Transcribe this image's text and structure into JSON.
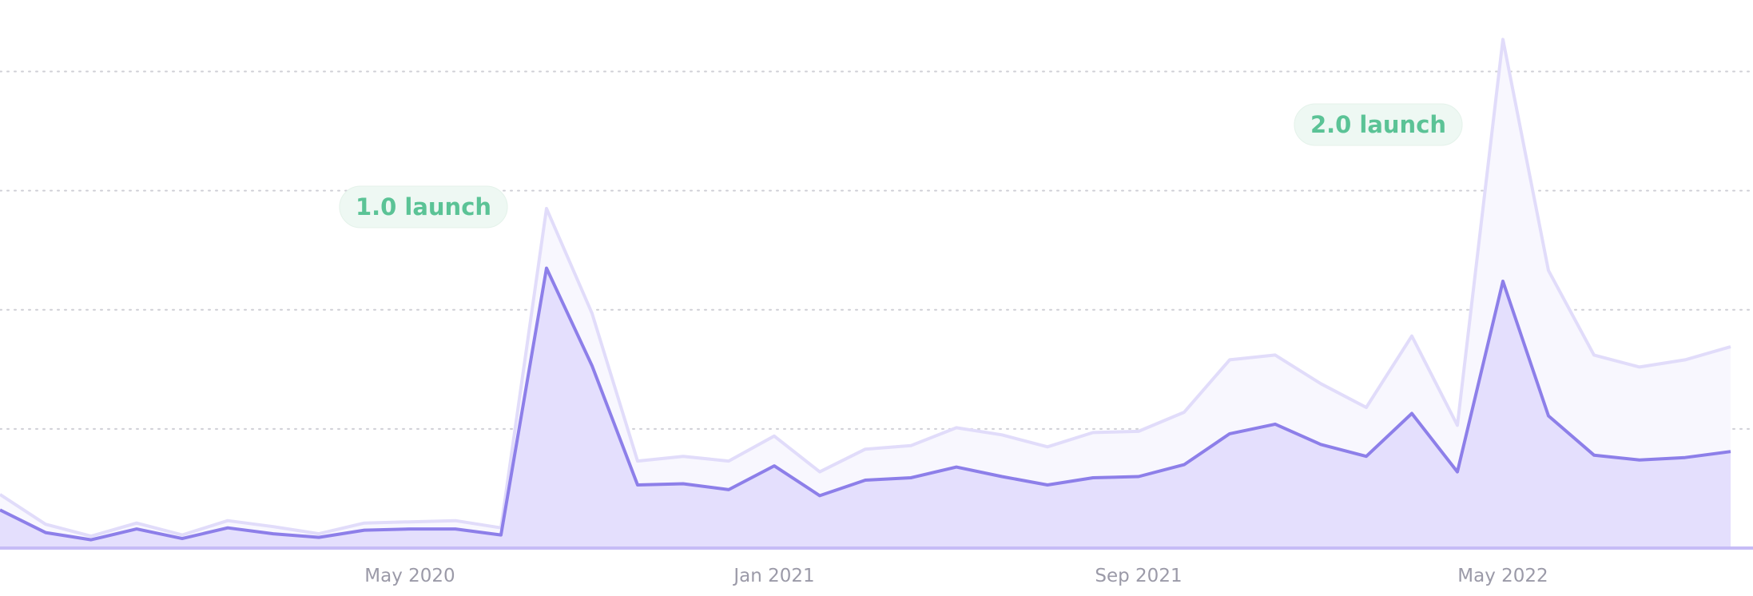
{
  "chart_data": {
    "type": "area",
    "x": [
      "2019-08",
      "2019-09",
      "2019-10",
      "2019-11",
      "2019-12",
      "2020-01",
      "2020-02",
      "2020-03",
      "2020-04",
      "2020-05",
      "2020-06",
      "2020-07",
      "2020-08",
      "2020-09",
      "2020-10",
      "2020-11",
      "2020-12",
      "2021-01",
      "2021-02",
      "2021-03",
      "2021-04",
      "2021-05",
      "2021-06",
      "2021-07",
      "2021-08",
      "2021-09",
      "2021-10",
      "2021-11",
      "2021-12",
      "2022-01",
      "2022-02",
      "2022-03",
      "2022-04",
      "2022-05",
      "2022-06",
      "2022-07",
      "2022-08",
      "2022-09",
      "2022-10"
    ],
    "series": [
      {
        "color": "#e1dcfa",
        "fill": "#f8f7fe",
        "values": [
          0.45,
          0.2,
          0.1,
          0.21,
          0.11,
          0.23,
          0.18,
          0.12,
          0.21,
          0.22,
          0.23,
          0.17,
          2.85,
          1.97,
          0.73,
          0.77,
          0.73,
          0.94,
          0.64,
          0.83,
          0.86,
          1.01,
          0.95,
          0.85,
          0.97,
          0.98,
          1.14,
          1.58,
          1.62,
          1.38,
          1.18,
          1.78,
          1.03,
          4.27,
          2.33,
          1.62,
          1.52,
          1.58,
          1.69
        ]
      },
      {
        "color": "#8d7fe9",
        "fill": "#e4dffd",
        "values": [
          0.32,
          0.13,
          0.07,
          0.16,
          0.08,
          0.17,
          0.12,
          0.09,
          0.15,
          0.16,
          0.16,
          0.11,
          2.35,
          1.53,
          0.53,
          0.54,
          0.49,
          0.69,
          0.44,
          0.57,
          0.59,
          0.68,
          0.6,
          0.53,
          0.59,
          0.6,
          0.7,
          0.96,
          1.04,
          0.87,
          0.77,
          1.13,
          0.64,
          2.24,
          1.11,
          0.78,
          0.74,
          0.76,
          0.81
        ]
      }
    ],
    "xlim": [
      "2019-08",
      "2022-10"
    ],
    "xticks": [
      {
        "value": "2020-05",
        "label": "May 2020"
      },
      {
        "value": "2021-01",
        "label": "Jan 2021"
      },
      {
        "value": "2021-09",
        "label": "Sep 2021"
      },
      {
        "value": "2022-05",
        "label": "May 2022"
      }
    ],
    "ylim": [
      0,
      4.5
    ],
    "yticks": [
      1,
      2,
      3,
      4
    ],
    "grid": true,
    "annotations": [
      {
        "text": "1.0 launch"
      },
      {
        "text": "2.0 launch"
      }
    ]
  }
}
